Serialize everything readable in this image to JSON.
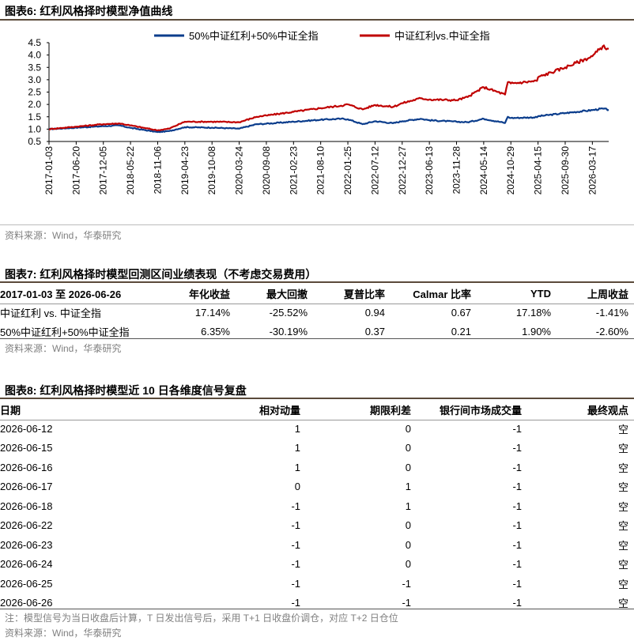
{
  "fig6": {
    "title": "图表6:   红利风格择时模型净值曲线",
    "source": "资料来源：Wind，华泰研究"
  },
  "chart_data": {
    "type": "line",
    "x_ticks": [
      "2017-01-03",
      "2017-06-20",
      "2017-12-05",
      "2018-05-22",
      "2018-11-06",
      "2019-04-23",
      "2019-10-08",
      "2020-03-24",
      "2020-09-08",
      "2021-02-23",
      "2021-08-10",
      "2022-01-25",
      "2022-07-12",
      "2022-12-27",
      "2023-06-13",
      "2023-11-28",
      "2024-05-14",
      "2024-10-29",
      "2025-04-15",
      "2025-09-30",
      "2026-03-17"
    ],
    "x_end": "2026-06-26",
    "ylim": [
      0.5,
      4.5
    ],
    "yticks": [
      "4.5",
      "4.0",
      "3.5",
      "3.0",
      "2.5",
      "2.0",
      "1.5",
      "1.0",
      "0.5"
    ],
    "legend": "top",
    "series": [
      {
        "name": "50%中证红利+50%中证全指",
        "color": "#0b3d8c",
        "points": [
          [
            "2017-01-03",
            1.0
          ],
          [
            "2017-06-20",
            1.06
          ],
          [
            "2017-12-05",
            1.12
          ],
          [
            "2018-03-15",
            1.15
          ],
          [
            "2018-05-22",
            1.05
          ],
          [
            "2018-11-06",
            0.88
          ],
          [
            "2019-01-15",
            0.92
          ],
          [
            "2019-04-23",
            1.08
          ],
          [
            "2019-10-08",
            1.06
          ],
          [
            "2020-03-24",
            1.02
          ],
          [
            "2020-07-10",
            1.2
          ],
          [
            "2020-09-08",
            1.22
          ],
          [
            "2021-02-23",
            1.3
          ],
          [
            "2021-08-10",
            1.38
          ],
          [
            "2021-12-15",
            1.42
          ],
          [
            "2022-01-25",
            1.4
          ],
          [
            "2022-04-26",
            1.2
          ],
          [
            "2022-07-12",
            1.32
          ],
          [
            "2022-10-31",
            1.24
          ],
          [
            "2022-12-27",
            1.32
          ],
          [
            "2023-04-20",
            1.42
          ],
          [
            "2023-06-13",
            1.36
          ],
          [
            "2023-11-28",
            1.3
          ],
          [
            "2024-02-05",
            1.28
          ],
          [
            "2024-05-14",
            1.42
          ],
          [
            "2024-09-23",
            1.25
          ],
          [
            "2024-10-10",
            1.5
          ],
          [
            "2024-10-29",
            1.45
          ],
          [
            "2025-04-08",
            1.48
          ],
          [
            "2025-04-15",
            1.52
          ],
          [
            "2025-09-30",
            1.65
          ],
          [
            "2026-03-17",
            1.77
          ],
          [
            "2026-05-20",
            1.83
          ],
          [
            "2026-06-26",
            1.78
          ]
        ]
      },
      {
        "name": "中证红利vs.中证全指",
        "color": "#c00000",
        "points": [
          [
            "2017-01-03",
            1.0
          ],
          [
            "2017-06-20",
            1.1
          ],
          [
            "2017-12-05",
            1.2
          ],
          [
            "2018-03-15",
            1.23
          ],
          [
            "2018-05-22",
            1.15
          ],
          [
            "2018-11-06",
            0.95
          ],
          [
            "2019-01-15",
            1.02
          ],
          [
            "2019-04-23",
            1.3
          ],
          [
            "2019-10-08",
            1.3
          ],
          [
            "2020-03-24",
            1.28
          ],
          [
            "2020-07-10",
            1.5
          ],
          [
            "2020-09-08",
            1.55
          ],
          [
            "2021-02-23",
            1.7
          ],
          [
            "2021-08-10",
            1.85
          ],
          [
            "2021-12-15",
            1.95
          ],
          [
            "2022-01-25",
            2.0
          ],
          [
            "2022-04-26",
            1.8
          ],
          [
            "2022-07-12",
            1.98
          ],
          [
            "2022-10-31",
            1.9
          ],
          [
            "2022-12-27",
            2.05
          ],
          [
            "2023-04-20",
            2.25
          ],
          [
            "2023-06-13",
            2.2
          ],
          [
            "2023-11-28",
            2.17
          ],
          [
            "2024-02-05",
            2.3
          ],
          [
            "2024-05-14",
            2.7
          ],
          [
            "2024-09-23",
            2.4
          ],
          [
            "2024-10-10",
            2.9
          ],
          [
            "2024-10-29",
            2.85
          ],
          [
            "2025-04-08",
            2.95
          ],
          [
            "2025-04-15",
            3.1
          ],
          [
            "2025-09-30",
            3.5
          ],
          [
            "2026-03-17",
            3.95
          ],
          [
            "2026-05-20",
            4.35
          ],
          [
            "2026-06-26",
            4.25
          ]
        ]
      }
    ]
  },
  "fig7": {
    "title": "图表7:   红利风格择时模型回测区间业绩表现（不考虑交易费用）",
    "headers": [
      "2017-01-03 至 2026-06-26",
      "年化收益",
      "最大回撤",
      "夏普比率",
      "Calmar 比率",
      "YTD",
      "上周收益"
    ],
    "rows": [
      [
        "中证红利 vs. 中证全指",
        "17.14%",
        "-25.52%",
        "0.94",
        "0.67",
        "17.18%",
        "-1.41%"
      ],
      [
        "50%中证红利+50%中证全指",
        "6.35%",
        "-30.19%",
        "0.37",
        "0.21",
        "1.90%",
        "-2.60%"
      ]
    ],
    "source": "资料来源：Wind，华泰研究"
  },
  "fig8": {
    "title": "图表8:   红利风格择时模型近 10 日各维度信号复盘",
    "headers": [
      "日期",
      "相对动量",
      "期限利差",
      "银行间市场成交量",
      "最终观点"
    ],
    "rows": [
      [
        "2026-06-12",
        "1",
        "0",
        "-1",
        "空"
      ],
      [
        "2026-06-15",
        "1",
        "0",
        "-1",
        "空"
      ],
      [
        "2026-06-16",
        "1",
        "0",
        "-1",
        "空"
      ],
      [
        "2026-06-17",
        "0",
        "1",
        "-1",
        "空"
      ],
      [
        "2026-06-18",
        "-1",
        "1",
        "-1",
        "空"
      ],
      [
        "2026-06-22",
        "-1",
        "0",
        "-1",
        "空"
      ],
      [
        "2026-06-23",
        "-1",
        "0",
        "-1",
        "空"
      ],
      [
        "2026-06-24",
        "-1",
        "0",
        "-1",
        "空"
      ],
      [
        "2026-06-25",
        "-1",
        "-1",
        "-1",
        "空"
      ],
      [
        "2026-06-26",
        "-1",
        "-1",
        "-1",
        "空"
      ]
    ],
    "note": "注：模型信号为当日收盘后计算，T 日发出信号后，采用 T+1 日收盘价调仓，对应 T+2 日仓位",
    "source": "资料来源：Wind，华泰研究"
  }
}
